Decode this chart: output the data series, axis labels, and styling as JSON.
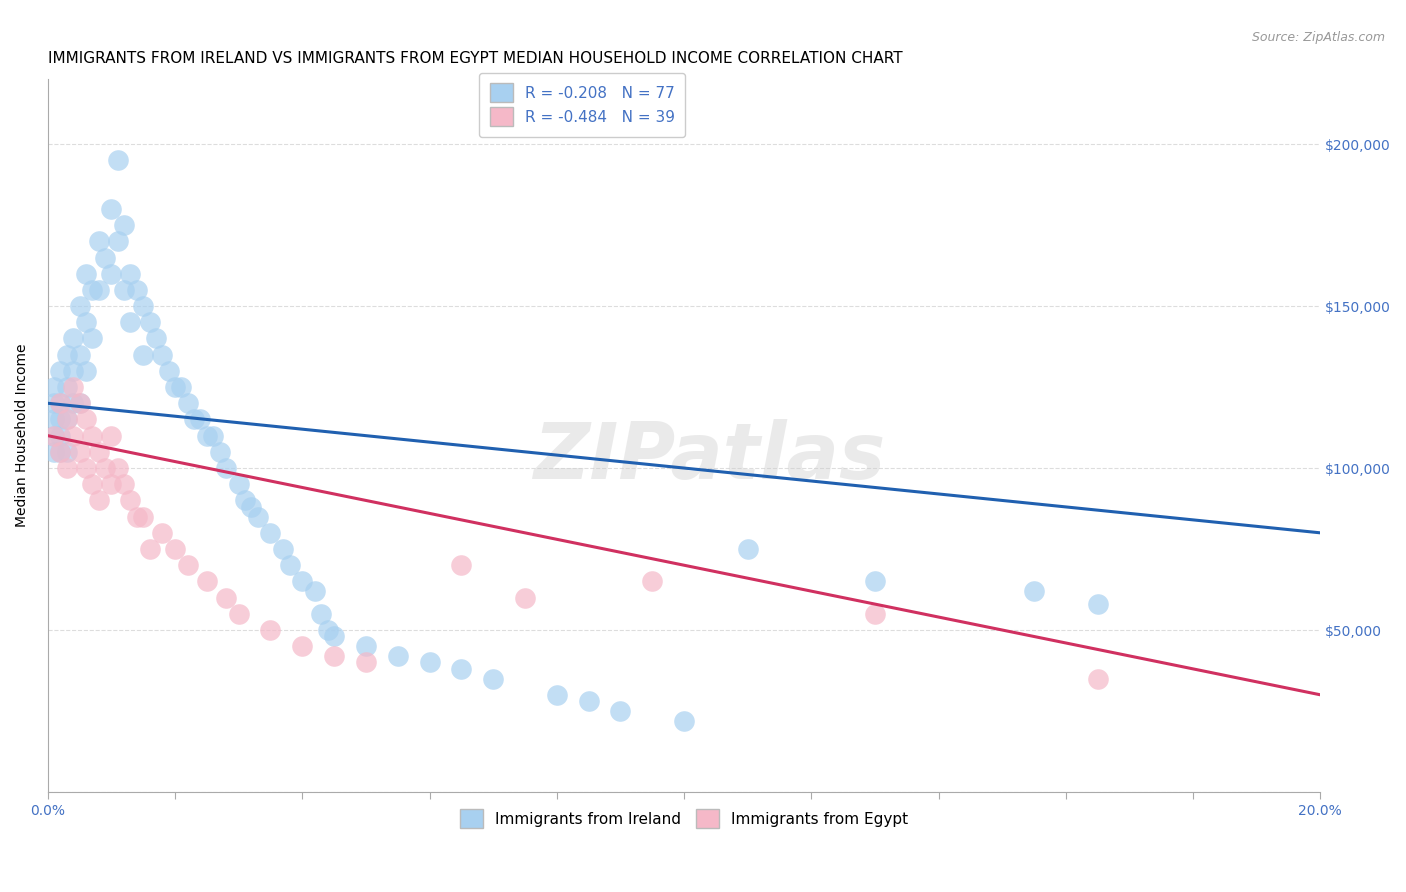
{
  "title": "IMMIGRANTS FROM IRELAND VS IMMIGRANTS FROM EGYPT MEDIAN HOUSEHOLD INCOME CORRELATION CHART",
  "source": "Source: ZipAtlas.com",
  "ylabel": "Median Household Income",
  "xlim": [
    0.0,
    0.2
  ],
  "ylim": [
    0,
    220000
  ],
  "yticks": [
    0,
    50000,
    100000,
    150000,
    200000
  ],
  "ytick_labels": [
    "",
    "$50,000",
    "$100,000",
    "$150,000",
    "$200,000"
  ],
  "watermark": "ZIPatlas",
  "legend_ireland": "R = -0.208   N = 77",
  "legend_egypt": "R = -0.484   N = 39",
  "legend_label_ireland": "Immigrants from Ireland",
  "legend_label_egypt": "Immigrants from Egypt",
  "color_ireland": "#a8d0f0",
  "color_egypt": "#f5b8c8",
  "line_color_ireland": "#2060b0",
  "line_color_egypt": "#d03060",
  "background_color": "#ffffff",
  "grid_color": "#dddddd",
  "title_fontsize": 11,
  "axis_label_fontsize": 10,
  "tick_fontsize": 10,
  "ireland_line_x0": 0.0,
  "ireland_line_y0": 120000,
  "ireland_line_x1": 0.2,
  "ireland_line_y1": 80000,
  "egypt_line_x0": 0.0,
  "egypt_line_y0": 110000,
  "egypt_line_x1": 0.2,
  "egypt_line_y1": 30000,
  "ireland_x": [
    0.001,
    0.001,
    0.001,
    0.001,
    0.001,
    0.002,
    0.002,
    0.002,
    0.002,
    0.002,
    0.003,
    0.003,
    0.003,
    0.003,
    0.004,
    0.004,
    0.004,
    0.005,
    0.005,
    0.005,
    0.006,
    0.006,
    0.006,
    0.007,
    0.007,
    0.008,
    0.008,
    0.009,
    0.01,
    0.01,
    0.011,
    0.011,
    0.012,
    0.012,
    0.013,
    0.013,
    0.014,
    0.015,
    0.015,
    0.016,
    0.017,
    0.018,
    0.019,
    0.02,
    0.021,
    0.022,
    0.023,
    0.024,
    0.025,
    0.026,
    0.027,
    0.028,
    0.03,
    0.031,
    0.032,
    0.033,
    0.035,
    0.037,
    0.038,
    0.04,
    0.042,
    0.043,
    0.044,
    0.045,
    0.05,
    0.055,
    0.06,
    0.065,
    0.07,
    0.08,
    0.085,
    0.09,
    0.1,
    0.11,
    0.13,
    0.155,
    0.165
  ],
  "ireland_y": [
    120000,
    125000,
    115000,
    110000,
    105000,
    130000,
    120000,
    115000,
    110000,
    105000,
    135000,
    125000,
    115000,
    105000,
    140000,
    130000,
    120000,
    150000,
    135000,
    120000,
    160000,
    145000,
    130000,
    155000,
    140000,
    170000,
    155000,
    165000,
    180000,
    160000,
    195000,
    170000,
    175000,
    155000,
    160000,
    145000,
    155000,
    150000,
    135000,
    145000,
    140000,
    135000,
    130000,
    125000,
    125000,
    120000,
    115000,
    115000,
    110000,
    110000,
    105000,
    100000,
    95000,
    90000,
    88000,
    85000,
    80000,
    75000,
    70000,
    65000,
    62000,
    55000,
    50000,
    48000,
    45000,
    42000,
    40000,
    38000,
    35000,
    30000,
    28000,
    25000,
    22000,
    75000,
    65000,
    62000,
    58000
  ],
  "egypt_x": [
    0.001,
    0.002,
    0.002,
    0.003,
    0.003,
    0.004,
    0.004,
    0.005,
    0.005,
    0.006,
    0.006,
    0.007,
    0.007,
    0.008,
    0.008,
    0.009,
    0.01,
    0.01,
    0.011,
    0.012,
    0.013,
    0.014,
    0.015,
    0.016,
    0.018,
    0.02,
    0.022,
    0.025,
    0.028,
    0.03,
    0.035,
    0.04,
    0.045,
    0.05,
    0.065,
    0.075,
    0.095,
    0.13,
    0.165
  ],
  "egypt_y": [
    110000,
    120000,
    105000,
    115000,
    100000,
    125000,
    110000,
    120000,
    105000,
    115000,
    100000,
    110000,
    95000,
    105000,
    90000,
    100000,
    110000,
    95000,
    100000,
    95000,
    90000,
    85000,
    85000,
    75000,
    80000,
    75000,
    70000,
    65000,
    60000,
    55000,
    50000,
    45000,
    42000,
    40000,
    70000,
    60000,
    65000,
    55000,
    35000
  ]
}
